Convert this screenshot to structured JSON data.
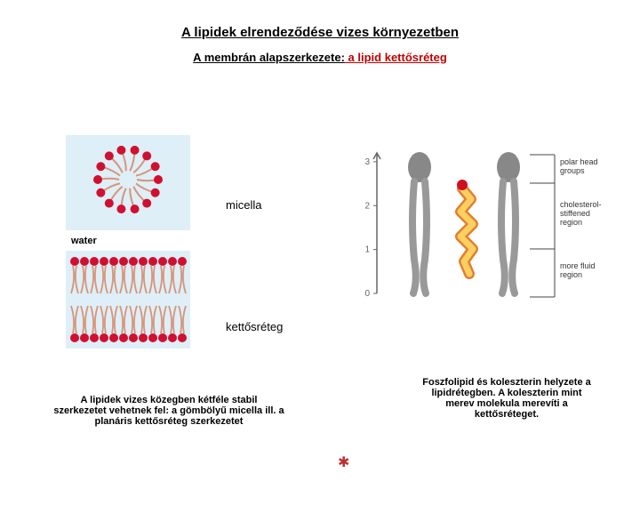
{
  "title": "A lipidek elrendeződése vizes környezetben",
  "title_fontsize": 15,
  "subtitle": {
    "part1": "A membrán alapszerkezete:",
    "part2": " a lipid kettősréteg",
    "fontsize": 13
  },
  "labels": {
    "micella": "micella",
    "bilayer": "kettősréteg",
    "water": "water"
  },
  "caption_left": "A lipidek vizes közegben kétféle stabil szerkezetet vehetnek fel: a gömbölyű micella ill. a planáris kettősréteg szerkezetet",
  "caption_right": "Foszfolipid és koleszterin helyzete a lipidrétegben. A koleszterin mint merev molekula merevíti a kettősréteget.",
  "left_fig": {
    "background": "#ffffff",
    "water_color": "#7abfe0",
    "head_color": "#d01030",
    "tail_color": "#d8947a",
    "micelle": {
      "n_lipids": 14,
      "radius": 34
    },
    "bilayer": {
      "n_cols": 12,
      "spacing": 11
    }
  },
  "right_fig": {
    "background": "#ffffff",
    "lipid_color": "#999999",
    "lipid_head": "#888888",
    "cholesterol_fill": "#ffd060",
    "cholesterol_stroke": "#e08030",
    "oh_color": "#d01020",
    "axis_color": "#666666",
    "divider_color": "#444444",
    "ytick_labels": [
      "0",
      "1",
      "2",
      "3"
    ],
    "ytick_values": [
      0,
      1,
      2,
      3
    ],
    "ylim": [
      0,
      3.2
    ],
    "regions": [
      {
        "label": "polar head groups"
      },
      {
        "label": "cholesterol- stiffened region"
      },
      {
        "label": "more fluid region"
      }
    ],
    "fontsize_ticks": 10,
    "fontsize_region": 9
  },
  "asterisk": "✱"
}
